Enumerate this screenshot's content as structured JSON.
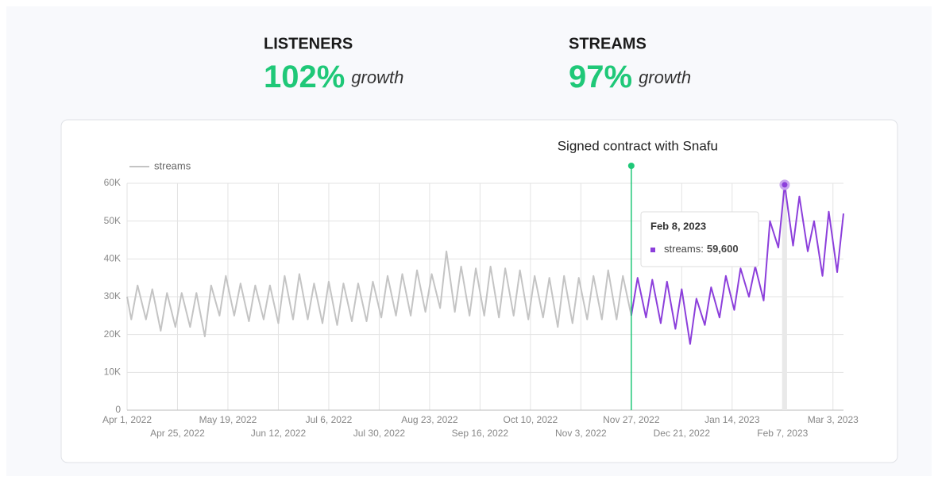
{
  "kpis": [
    {
      "title": "LISTENERS",
      "value": "102%",
      "suffix": "growth"
    },
    {
      "title": "STREAMS",
      "value": "97%",
      "suffix": "growth"
    }
  ],
  "chart_data": {
    "type": "line",
    "x": [
      "2022-04-01",
      "2022-04-03",
      "2022-04-06",
      "2022-04-10",
      "2022-04-13",
      "2022-04-17",
      "2022-04-20",
      "2022-04-24",
      "2022-04-27",
      "2022-05-01",
      "2022-05-04",
      "2022-05-08",
      "2022-05-11",
      "2022-05-15",
      "2022-05-18",
      "2022-05-22",
      "2022-05-25",
      "2022-05-29",
      "2022-06-01",
      "2022-06-05",
      "2022-06-08",
      "2022-06-12",
      "2022-06-15",
      "2022-06-19",
      "2022-06-22",
      "2022-06-26",
      "2022-06-29",
      "2022-07-03",
      "2022-07-06",
      "2022-07-10",
      "2022-07-13",
      "2022-07-17",
      "2022-07-20",
      "2022-07-24",
      "2022-07-27",
      "2022-07-31",
      "2022-08-03",
      "2022-08-07",
      "2022-08-10",
      "2022-08-14",
      "2022-08-17",
      "2022-08-21",
      "2022-08-24",
      "2022-08-28",
      "2022-08-31",
      "2022-09-04",
      "2022-09-07",
      "2022-09-11",
      "2022-09-14",
      "2022-09-18",
      "2022-09-21",
      "2022-09-25",
      "2022-09-28",
      "2022-10-02",
      "2022-10-05",
      "2022-10-09",
      "2022-10-12",
      "2022-10-16",
      "2022-10-19",
      "2022-10-23",
      "2022-10-26",
      "2022-10-30",
      "2022-11-02",
      "2022-11-06",
      "2022-11-09",
      "2022-11-13",
      "2022-11-16",
      "2022-11-20",
      "2022-11-23",
      "2022-11-27",
      "2022-11-30",
      "2022-12-04",
      "2022-12-07",
      "2022-12-11",
      "2022-12-14",
      "2022-12-18",
      "2022-12-21",
      "2022-12-25",
      "2022-12-28",
      "2023-01-01",
      "2023-01-04",
      "2023-01-08",
      "2023-01-11",
      "2023-01-15",
      "2023-01-18",
      "2023-01-22",
      "2023-01-25",
      "2023-01-29",
      "2023-02-01",
      "2023-02-05",
      "2023-02-08",
      "2023-02-12",
      "2023-02-15",
      "2023-02-19",
      "2023-02-22",
      "2023-02-26",
      "2023-03-01",
      "2023-03-05",
      "2023-03-08"
    ],
    "series": [
      {
        "name": "streams",
        "color": "#c4c4c4",
        "values": [
          30000,
          24000,
          33000,
          24000,
          32000,
          21000,
          31000,
          22000,
          31000,
          22000,
          31000,
          19500,
          33000,
          25000,
          35500,
          25000,
          33500,
          23500,
          33000,
          24000,
          33000,
          23000,
          35500,
          24000,
          36000,
          24000,
          33500,
          23000,
          34000,
          22500,
          33500,
          23500,
          33500,
          23500,
          34000,
          24500,
          35500,
          25000,
          36000,
          25000,
          37000,
          26000,
          36000,
          27000,
          42000,
          26000,
          38000,
          25000,
          37500,
          25000,
          38000,
          24500,
          37500,
          25000,
          37000,
          24000,
          35500,
          24500,
          35000,
          22000,
          35500,
          23000,
          35000,
          24000,
          35500,
          24000,
          37000,
          24000,
          35500,
          25000,
          35000,
          24500,
          34500,
          23000,
          34000,
          21500,
          32000,
          17500,
          29500,
          22500,
          32500,
          24500,
          35500,
          26500,
          37500,
          30000,
          38000,
          29000,
          50000,
          43000,
          59600,
          43500,
          56500,
          42000,
          50000,
          35500,
          52500,
          36500,
          52000
        ]
      }
    ],
    "xlim": [
      "2022-04-01",
      "2023-03-08"
    ],
    "xticks": [
      {
        "value": "2022-04-01",
        "label": "Apr 1, 2022"
      },
      {
        "value": "2022-04-25",
        "label": "Apr 25, 2022"
      },
      {
        "value": "2022-05-19",
        "label": "May 19, 2022"
      },
      {
        "value": "2022-06-12",
        "label": "Jun 12, 2022"
      },
      {
        "value": "2022-07-06",
        "label": "Jul 6, 2022"
      },
      {
        "value": "2022-07-30",
        "label": "Jul 30, 2022"
      },
      {
        "value": "2022-08-23",
        "label": "Aug 23, 2022"
      },
      {
        "value": "2022-09-16",
        "label": "Sep 16, 2022"
      },
      {
        "value": "2022-10-10",
        "label": "Oct 10, 2022"
      },
      {
        "value": "2022-11-03",
        "label": "Nov 3, 2022"
      },
      {
        "value": "2022-11-27",
        "label": "Nov 27, 2022"
      },
      {
        "value": "2022-12-21",
        "label": "Dec 21, 2022"
      },
      {
        "value": "2023-01-14",
        "label": "Jan 14, 2023"
      },
      {
        "value": "2023-02-07",
        "label": "Feb 7, 2023"
      },
      {
        "value": "2023-03-03",
        "label": "Mar 3, 2023"
      }
    ],
    "ylim": [
      0,
      60000
    ],
    "yticks": [
      0,
      {
        "value": 10000,
        "label": "10K"
      },
      {
        "value": 20000,
        "label": "20K"
      },
      {
        "value": 30000,
        "label": "30K"
      },
      {
        "value": 40000,
        "label": "40K"
      },
      {
        "value": 50000,
        "label": "50K"
      },
      {
        "value": 60000,
        "label": "60K"
      }
    ],
    "grid": true,
    "legend": "top-left",
    "annotation": {
      "x": "2022-11-27",
      "label": "Signed contract with Snafu",
      "color": "#1fc878",
      "after_color": "#8c3fdb"
    },
    "tooltip": {
      "title": "Feb 8, 2023",
      "label": "streams:",
      "value": 59600,
      "value_label": "59,600"
    }
  }
}
